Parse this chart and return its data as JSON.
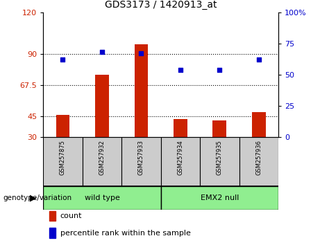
{
  "title": "GDS3173 / 1420913_at",
  "categories": [
    "GSM257875",
    "GSM257932",
    "GSM257933",
    "GSM257934",
    "GSM257935",
    "GSM257936"
  ],
  "bar_values": [
    46,
    75,
    97,
    43,
    42,
    48
  ],
  "scatter_values": [
    62,
    68,
    67,
    54,
    54,
    62
  ],
  "bar_color": "#CC2200",
  "scatter_color": "#0000CC",
  "ylim_left": [
    30,
    120
  ],
  "ylim_right": [
    0,
    100
  ],
  "yticks_left": [
    30,
    45,
    67.5,
    90,
    120
  ],
  "ytick_labels_left": [
    "30",
    "45",
    "67.5",
    "90",
    "120"
  ],
  "yticks_right": [
    0,
    25,
    50,
    75,
    100
  ],
  "ytick_labels_right": [
    "0",
    "25",
    "50",
    "75",
    "100%"
  ],
  "hlines": [
    45,
    67.5,
    90
  ],
  "group1_label": "wild type",
  "group2_label": "EMX2 null",
  "x_label": "genotype/variation",
  "legend_count": "count",
  "legend_pct": "percentile rank within the sample",
  "group_color": "#90EE90",
  "bg_color": "#CCCCCC",
  "bar_width": 0.35
}
